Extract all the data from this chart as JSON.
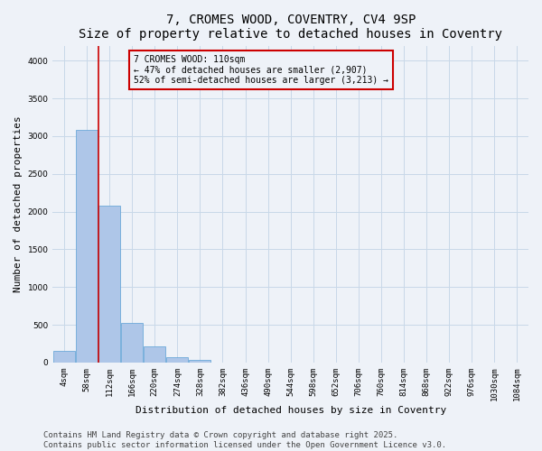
{
  "title": "7, CROMES WOOD, COVENTRY, CV4 9SP",
  "subtitle": "Size of property relative to detached houses in Coventry",
  "xlabel": "Distribution of detached houses by size in Coventry",
  "ylabel": "Number of detached properties",
  "categories": [
    "4sqm",
    "58sqm",
    "112sqm",
    "166sqm",
    "220sqm",
    "274sqm",
    "328sqm",
    "382sqm",
    "436sqm",
    "490sqm",
    "544sqm",
    "598sqm",
    "652sqm",
    "706sqm",
    "760sqm",
    "814sqm",
    "868sqm",
    "922sqm",
    "976sqm",
    "1030sqm",
    "1084sqm"
  ],
  "values": [
    150,
    3080,
    2080,
    530,
    210,
    70,
    30,
    0,
    0,
    0,
    0,
    0,
    0,
    0,
    0,
    0,
    0,
    0,
    0,
    0,
    0
  ],
  "bar_color": "#aec6e8",
  "bar_edge_color": "#5a9fd4",
  "grid_color": "#c8d8e8",
  "background_color": "#eef2f8",
  "annotation_box_color": "#cc0000",
  "property_line_color": "#cc0000",
  "property_line_x": 1.5,
  "property_label": "7 CROMES WOOD: 110sqm",
  "annotation_line1": "← 47% of detached houses are smaller (2,907)",
  "annotation_line2": "52% of semi-detached houses are larger (3,213) →",
  "ylim": [
    0,
    4200
  ],
  "yticks": [
    0,
    500,
    1000,
    1500,
    2000,
    2500,
    3000,
    3500,
    4000
  ],
  "footer_line1": "Contains HM Land Registry data © Crown copyright and database right 2025.",
  "footer_line2": "Contains public sector information licensed under the Open Government Licence v3.0.",
  "title_fontsize": 10,
  "subtitle_fontsize": 9,
  "axis_label_fontsize": 8,
  "tick_fontsize": 6.5,
  "annotation_fontsize": 7,
  "footer_fontsize": 6.5
}
